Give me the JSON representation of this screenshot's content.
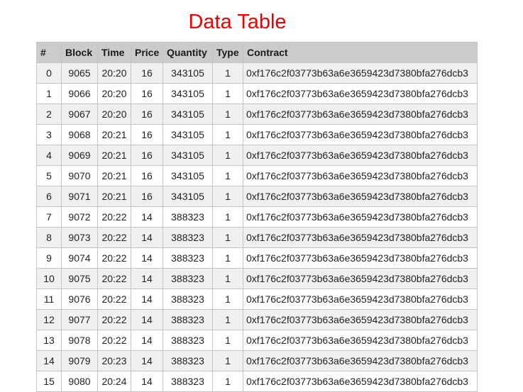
{
  "page": {
    "title": "Data Table"
  },
  "table": {
    "columns": [
      "#",
      "Block",
      "Time",
      "Price",
      "Quantity",
      "Type",
      "Contract"
    ],
    "rows": [
      [
        "0",
        "9065",
        "20:20",
        "16",
        "343105",
        "1",
        "0xf176c2f03773b63a6e3659423d7380bfa276dcb3"
      ],
      [
        "1",
        "9066",
        "20:20",
        "16",
        "343105",
        "1",
        "0xf176c2f03773b63a6e3659423d7380bfa276dcb3"
      ],
      [
        "2",
        "9067",
        "20:20",
        "16",
        "343105",
        "1",
        "0xf176c2f03773b63a6e3659423d7380bfa276dcb3"
      ],
      [
        "3",
        "9068",
        "20:21",
        "16",
        "343105",
        "1",
        "0xf176c2f03773b63a6e3659423d7380bfa276dcb3"
      ],
      [
        "4",
        "9069",
        "20:21",
        "16",
        "343105",
        "1",
        "0xf176c2f03773b63a6e3659423d7380bfa276dcb3"
      ],
      [
        "5",
        "9070",
        "20:21",
        "16",
        "343105",
        "1",
        "0xf176c2f03773b63a6e3659423d7380bfa276dcb3"
      ],
      [
        "6",
        "9071",
        "20:21",
        "16",
        "343105",
        "1",
        "0xf176c2f03773b63a6e3659423d7380bfa276dcb3"
      ],
      [
        "7",
        "9072",
        "20:22",
        "14",
        "388323",
        "1",
        "0xf176c2f03773b63a6e3659423d7380bfa276dcb3"
      ],
      [
        "8",
        "9073",
        "20:22",
        "14",
        "388323",
        "1",
        "0xf176c2f03773b63a6e3659423d7380bfa276dcb3"
      ],
      [
        "9",
        "9074",
        "20:22",
        "14",
        "388323",
        "1",
        "0xf176c2f03773b63a6e3659423d7380bfa276dcb3"
      ],
      [
        "10",
        "9075",
        "20:22",
        "14",
        "388323",
        "1",
        "0xf176c2f03773b63a6e3659423d7380bfa276dcb3"
      ],
      [
        "11",
        "9076",
        "20:22",
        "14",
        "388323",
        "1",
        "0xf176c2f03773b63a6e3659423d7380bfa276dcb3"
      ],
      [
        "12",
        "9077",
        "20:22",
        "14",
        "388323",
        "1",
        "0xf176c2f03773b63a6e3659423d7380bfa276dcb3"
      ],
      [
        "13",
        "9078",
        "20:22",
        "14",
        "388323",
        "1",
        "0xf176c2f03773b63a6e3659423d7380bfa276dcb3"
      ],
      [
        "14",
        "9079",
        "20:23",
        "14",
        "388323",
        "1",
        "0xf176c2f03773b63a6e3659423d7380bfa276dcb3"
      ],
      [
        "15",
        "9080",
        "20:24",
        "14",
        "388323",
        "1",
        "0xf176c2f03773b63a6e3659423d7380bfa276dcb3"
      ]
    ]
  },
  "colors": {
    "title": "#ee0000",
    "header_background": "#cbcbcb",
    "row_striped": "#f0f0f0",
    "row_plain": "#ffffff",
    "border": "#c4c4c4"
  }
}
